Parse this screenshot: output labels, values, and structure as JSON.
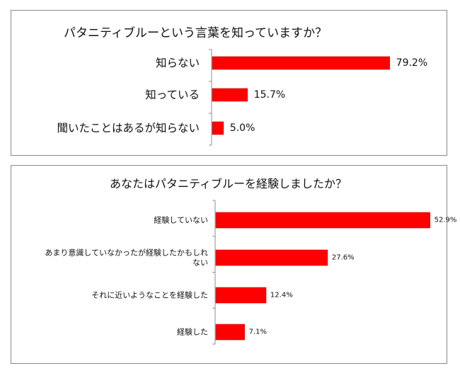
{
  "chart_data": [
    {
      "type": "bar",
      "orientation": "horizontal",
      "title": "パタニティブルーという言葉を知っていますか？",
      "categories": [
        "知らない",
        "知っている",
        "聞いたことはあるが知らない"
      ],
      "values": [
        79.2,
        15.7,
        5.0
      ],
      "value_labels": [
        "79.2%",
        "15.7%",
        "5.0%"
      ],
      "xlim": [
        0,
        100
      ],
      "bar_color": "#ff0000"
    },
    {
      "type": "bar",
      "orientation": "horizontal",
      "title": "あなたはパタニティブルーを経験しましたか？",
      "categories": [
        "経験していない",
        "あまり意識していなかったが経験したかもしれない",
        "それに近いようなことを経験した",
        "経験した"
      ],
      "category_lines": [
        [
          "経験していない"
        ],
        [
          "あまり意識していなかったが経験したかもしれ",
          "ない"
        ],
        [
          "それに近いようなことを経験した"
        ],
        [
          "経験した"
        ]
      ],
      "values": [
        52.9,
        27.6,
        12.4,
        7.1
      ],
      "value_labels": [
        "52.9%",
        "27.6%",
        "12.4%",
        "7.1%"
      ],
      "xlim": [
        0,
        100
      ],
      "bar_color": "#ff0000"
    }
  ]
}
